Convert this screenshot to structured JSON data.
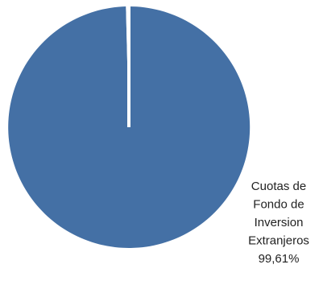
{
  "chart_data": {
    "type": "pie",
    "title": "",
    "slices": [
      {
        "label_lines": [
          "Cuotas de",
          "Fondo de",
          "Inversion",
          "Extranjeros",
          "99,61%"
        ],
        "value": 99.61,
        "color": "#4470a5"
      },
      {
        "label_lines": [],
        "value": 0.39,
        "color": "#ffffff"
      }
    ],
    "start_angle_deg": 0,
    "direction": "clockwise",
    "legend": "none"
  }
}
